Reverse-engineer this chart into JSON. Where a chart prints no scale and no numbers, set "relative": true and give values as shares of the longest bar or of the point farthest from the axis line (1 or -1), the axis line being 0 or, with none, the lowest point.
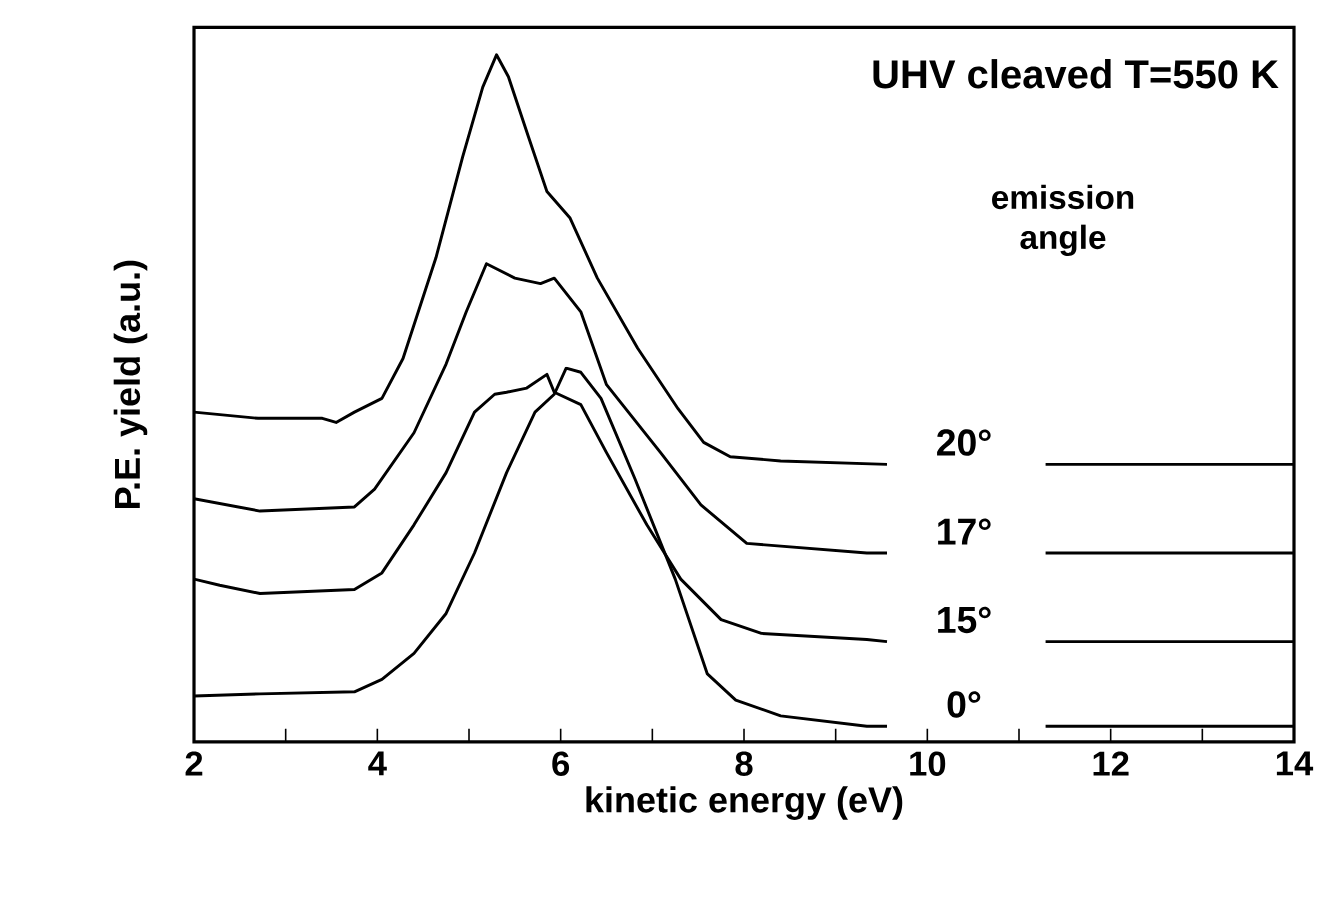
{
  "chart_data": {
    "type": "line",
    "relative": true,
    "xlabel": "kinetic energy (eV)",
    "ylabel": "P.E. yield (a.u.)",
    "annotations": [
      "UHV cleaved  T=550 K",
      "emission angle"
    ],
    "xlim": [
      2,
      14
    ],
    "xticks": [
      2,
      {
        "value": 3,
        "label": null
      },
      4,
      {
        "value": 5,
        "label": null
      },
      6,
      {
        "value": 7,
        "label": null
      },
      8,
      {
        "value": 9,
        "label": null
      },
      10,
      {
        "value": 11,
        "label": null
      },
      12,
      {
        "value": 13,
        "label": null
      },
      14
    ],
    "marker": "none",
    "line_style": "solid",
    "series": [
      {
        "name": "20°",
        "color": "#000000",
        "x": [
          2,
          2.7,
          3.4,
          3.55,
          3.75,
          4.05,
          4.28,
          4.64,
          4.93,
          5.15,
          5.3,
          5.43,
          5.65,
          5.85,
          6.1,
          6.4,
          6.84,
          7.28,
          7.56,
          7.85,
          8.4,
          9.56,
          10.4,
          11.29,
          14
        ],
        "values": [
          0.48,
          0.471,
          0.471,
          0.465,
          0.48,
          0.5,
          0.558,
          0.705,
          0.851,
          0.953,
          1,
          0.968,
          0.88,
          0.801,
          0.763,
          0.675,
          0.573,
          0.485,
          0.436,
          0.415,
          0.409,
          0.404,
          null,
          0.404,
          0.404
        ]
      },
      {
        "name": "17°",
        "color": "#000000",
        "x": [
          2,
          2.72,
          3.75,
          3.97,
          4.4,
          4.75,
          4.97,
          5.19,
          5.5,
          5.78,
          5.93,
          6.22,
          6.5,
          7.09,
          7.53,
          8.03,
          9.34,
          9.56,
          10.4,
          11.29,
          14
        ],
        "values": [
          0.354,
          0.336,
          0.342,
          0.368,
          0.45,
          0.55,
          0.626,
          0.696,
          0.675,
          0.667,
          0.675,
          0.626,
          0.52,
          0.421,
          0.345,
          0.289,
          0.275,
          0.275,
          null,
          0.275,
          0.275
        ]
      },
      {
        "name": "15°",
        "color": "#000000",
        "x": [
          2,
          2.28,
          2.72,
          3.75,
          4.05,
          4.4,
          4.75,
          5.06,
          5.28,
          5.41,
          5.63,
          5.85,
          5.93,
          6.22,
          6.5,
          6.94,
          7.31,
          7.75,
          8.19,
          9.34,
          9.56,
          10.4,
          11.29,
          14
        ],
        "values": [
          0.237,
          0.228,
          0.216,
          0.222,
          0.246,
          0.316,
          0.392,
          0.48,
          0.506,
          0.509,
          0.515,
          0.535,
          0.509,
          0.491,
          0.421,
          0.316,
          0.237,
          0.178,
          0.158,
          0.149,
          0.146,
          null,
          0.146,
          0.146
        ]
      },
      {
        "name": "0°",
        "color": "#000000",
        "x": [
          2,
          2.72,
          3.75,
          4.05,
          4.4,
          4.75,
          5.06,
          5.41,
          5.72,
          5.93,
          6.06,
          6.22,
          6.44,
          6.81,
          7.25,
          7.6,
          7.91,
          8.4,
          9.34,
          9.56,
          10.4,
          11.29,
          14
        ],
        "values": [
          0.067,
          0.07,
          0.073,
          0.091,
          0.129,
          0.187,
          0.275,
          0.392,
          0.48,
          0.506,
          0.544,
          0.538,
          0.5,
          0.383,
          0.237,
          0.099,
          0.061,
          0.038,
          0.023,
          0.023,
          null,
          0.023,
          0.023
        ]
      }
    ]
  }
}
